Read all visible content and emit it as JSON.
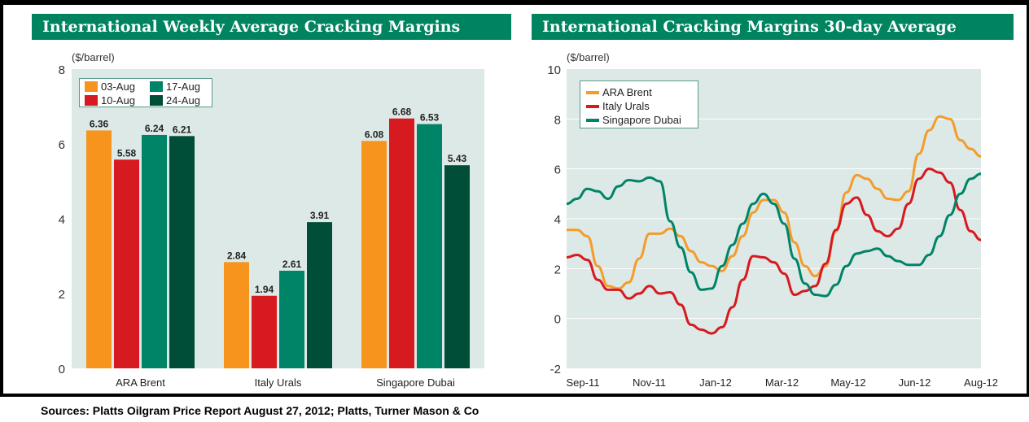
{
  "footer": {
    "sources": "Sources: Platts Oilgram Price Report August 27, 2012; Platts, Turner Mason & Co"
  },
  "colors": {
    "header": "#00845f",
    "plot_bg": "#dde9e6",
    "orange": "#f7941d",
    "red": "#d71920",
    "teal": "#008468",
    "dark_green": "#004d38"
  },
  "chart_data": [
    {
      "type": "bar",
      "title": "International Weekly Average Cracking Margins",
      "ylabel": "($/barrel)",
      "ylim": [
        0,
        8
      ],
      "yticks": [
        "0",
        "2",
        "4",
        "6",
        "8"
      ],
      "categories": [
        "ARA Brent",
        "Italy Urals",
        "Singapore Dubai"
      ],
      "legend_placement": "top-left",
      "series": [
        {
          "name": "03-Aug",
          "color": "#f7941d",
          "values": [
            6.36,
            2.84,
            6.08
          ],
          "labels": [
            "6.36",
            "2.84",
            "6.08"
          ]
        },
        {
          "name": "10-Aug",
          "color": "#d71920",
          "values": [
            5.58,
            1.94,
            6.68
          ],
          "labels": [
            "5.58",
            "1.94",
            "6.68"
          ]
        },
        {
          "name": "17-Aug",
          "color": "#008468",
          "values": [
            6.24,
            2.61,
            6.53
          ],
          "labels": [
            "6.24",
            "2.61",
            "6.53"
          ]
        },
        {
          "name": "24-Aug",
          "color": "#004d38",
          "values": [
            6.21,
            3.91,
            5.43
          ],
          "labels": [
            "6.21",
            "3.91",
            "5.43"
          ]
        }
      ]
    },
    {
      "type": "line",
      "title": "International Cracking Margins 30-day Average",
      "ylabel": "($/barrel)",
      "ylim": [
        -2,
        10
      ],
      "yticks": [
        "-2",
        "0",
        "2",
        "4",
        "6",
        "8",
        "10"
      ],
      "xticks": [
        "Sep-11",
        "Nov-11",
        "Jan-12",
        "Mar-12",
        "May-12",
        "Jun-12",
        "Aug-12"
      ],
      "grid": true,
      "legend_placement": "top-left",
      "series": [
        {
          "name": "ARA Brent",
          "color": "#f39c2c",
          "values": [
            3.55,
            3.55,
            3.3,
            2.1,
            1.3,
            1.2,
            1.45,
            2.4,
            3.4,
            3.4,
            3.6,
            3.3,
            2.7,
            2.25,
            2.1,
            1.9,
            2.5,
            3.3,
            4.25,
            4.75,
            4.75,
            4.25,
            3.05,
            2.1,
            1.7,
            2.1,
            3.5,
            5.05,
            5.75,
            5.6,
            5.2,
            4.8,
            4.75,
            5.1,
            6.6,
            7.55,
            8.1,
            8.0,
            7.15,
            6.8,
            6.5
          ]
        },
        {
          "name": "Italy Urals",
          "color": "#d71920",
          "values": [
            2.45,
            2.55,
            2.35,
            1.55,
            1.15,
            1.15,
            0.8,
            1.0,
            1.3,
            1.0,
            1.05,
            0.55,
            -0.25,
            -0.45,
            -0.6,
            -0.35,
            0.45,
            1.55,
            2.5,
            2.45,
            2.25,
            1.8,
            0.95,
            1.1,
            1.3,
            2.2,
            3.55,
            4.6,
            4.85,
            4.15,
            3.5,
            3.3,
            3.6,
            4.6,
            5.6,
            6.0,
            5.85,
            5.45,
            4.35,
            3.5,
            3.15
          ]
        },
        {
          "name": "Singapore Dubai",
          "color": "#008468",
          "values": [
            4.6,
            4.8,
            5.2,
            5.1,
            4.8,
            5.3,
            5.55,
            5.5,
            5.65,
            5.5,
            3.9,
            2.85,
            1.85,
            1.15,
            1.2,
            2.1,
            2.95,
            3.8,
            4.6,
            5.0,
            4.6,
            3.8,
            2.4,
            1.4,
            0.95,
            0.9,
            1.35,
            2.1,
            2.6,
            2.7,
            2.8,
            2.5,
            2.3,
            2.15,
            2.15,
            2.55,
            3.3,
            4.15,
            5.0,
            5.6,
            5.8
          ]
        }
      ]
    }
  ]
}
